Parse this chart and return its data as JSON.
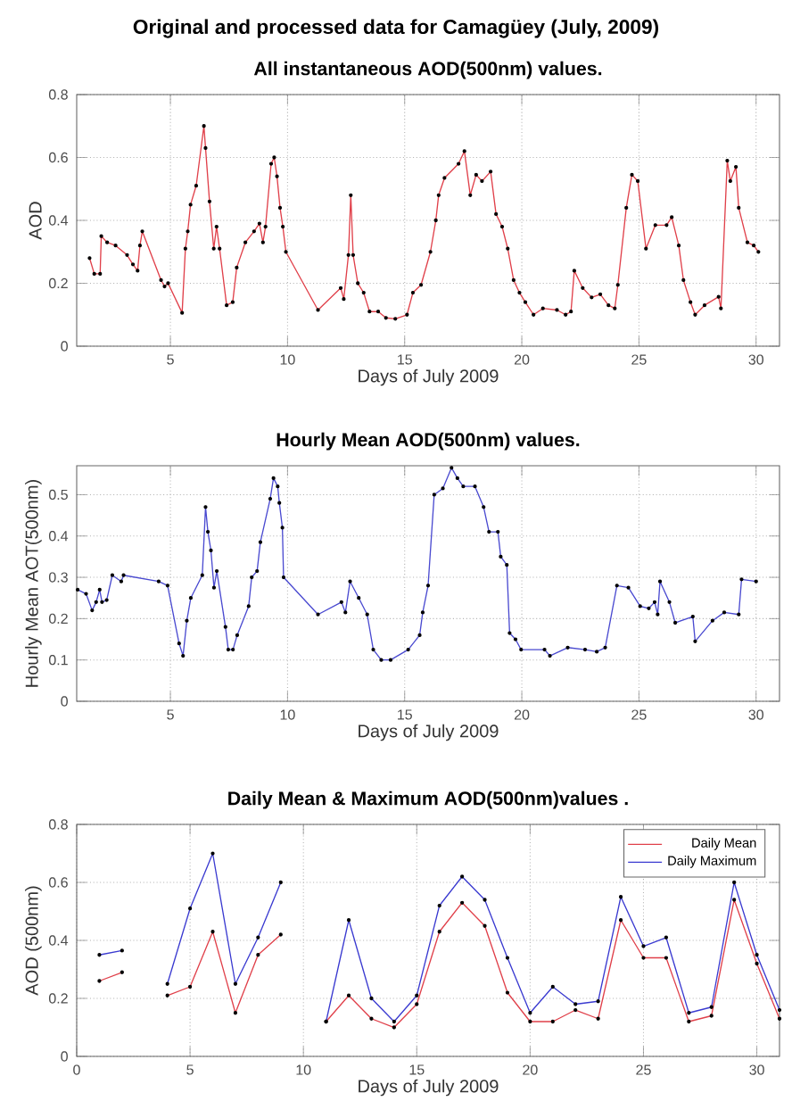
{
  "chart_data": [
    {
      "type": "line",
      "title": "Original and processed data for Camagüey (July, 2009)",
      "subtitle": "All instantaneous AOD(500nm) values.",
      "xlabel": "Days of July 2009",
      "ylabel": "AOD",
      "xlim": [
        1,
        31
      ],
      "ylim": [
        0,
        0.8
      ],
      "xticks": [
        5,
        10,
        15,
        20,
        25,
        30
      ],
      "yticks": [
        0,
        0.2,
        0.4,
        0.6,
        0.8
      ],
      "grid": true,
      "marker": "circle",
      "x": [
        1.55,
        1.75,
        2.0,
        2.05,
        2.3,
        2.66,
        3.15,
        3.4,
        3.6,
        3.7,
        3.8,
        4.6,
        4.75,
        4.9,
        5.5,
        5.64,
        5.74,
        5.86,
        6.1,
        6.43,
        6.5,
        6.67,
        6.85,
        6.97,
        7.1,
        7.4,
        7.66,
        7.83,
        8.2,
        8.57,
        8.8,
        8.95,
        9.06,
        9.3,
        9.43,
        9.55,
        9.68,
        9.8,
        9.93,
        11.3,
        12.27,
        12.4,
        12.6,
        12.7,
        12.8,
        13.0,
        13.25,
        13.5,
        13.87,
        14.2,
        14.6,
        15.1,
        15.35,
        15.7,
        16.1,
        16.33,
        16.45,
        16.7,
        17.3,
        17.55,
        17.8,
        18.05,
        18.3,
        18.67,
        18.9,
        19.16,
        19.4,
        19.65,
        19.9,
        20.15,
        20.5,
        20.9,
        21.5,
        21.87,
        22.1,
        22.24,
        22.6,
        22.98,
        23.35,
        23.7,
        23.97,
        24.1,
        24.46,
        24.7,
        24.95,
        25.3,
        25.7,
        26.18,
        26.4,
        26.7,
        26.9,
        27.2,
        27.4,
        27.8,
        28.4,
        28.5,
        28.77,
        28.9,
        29.14,
        29.26,
        29.63,
        29.9,
        30.1
      ],
      "series": [
        {
          "color": "#e0404a",
          "values": [
            0.28,
            0.23,
            0.23,
            0.35,
            0.33,
            0.32,
            0.29,
            0.26,
            0.24,
            0.32,
            0.365,
            0.21,
            0.19,
            0.2,
            0.106,
            0.31,
            0.365,
            0.45,
            0.51,
            0.7,
            0.63,
            0.46,
            0.31,
            0.38,
            0.31,
            0.13,
            0.14,
            0.25,
            0.33,
            0.365,
            0.39,
            0.33,
            0.38,
            0.58,
            0.6,
            0.54,
            0.44,
            0.38,
            0.3,
            0.115,
            0.185,
            0.15,
            0.29,
            0.48,
            0.29,
            0.2,
            0.17,
            0.11,
            0.11,
            0.09,
            0.087,
            0.1,
            0.17,
            0.195,
            0.3,
            0.4,
            0.48,
            0.535,
            0.58,
            0.62,
            0.48,
            0.545,
            0.525,
            0.555,
            0.42,
            0.38,
            0.31,
            0.21,
            0.17,
            0.14,
            0.1,
            0.12,
            0.115,
            0.1,
            0.11,
            0.24,
            0.185,
            0.155,
            0.165,
            0.13,
            0.12,
            0.195,
            0.44,
            0.545,
            0.525,
            0.31,
            0.385,
            0.385,
            0.41,
            0.32,
            0.21,
            0.14,
            0.1,
            0.13,
            0.157,
            0.12,
            0.59,
            0.525,
            0.57,
            0.44,
            0.33,
            0.32,
            0.3
          ]
        }
      ]
    },
    {
      "type": "line",
      "title": "Hourly Mean AOD(500nm) values.",
      "xlabel": "Days of July 2009",
      "ylabel": "Hourly Mean AOT(500nm)",
      "xlim": [
        1,
        31
      ],
      "ylim": [
        0,
        0.57
      ],
      "xticks": [
        5,
        10,
        15,
        20,
        25,
        30
      ],
      "yticks": [
        0,
        0.1,
        0.2,
        0.3,
        0.4,
        0.5
      ],
      "grid": true,
      "marker": "circle",
      "x": [
        1.04,
        1.4,
        1.66,
        1.83,
        1.98,
        2.08,
        2.28,
        2.52,
        2.9,
        3.0,
        4.5,
        4.88,
        5.37,
        5.54,
        5.7,
        5.87,
        6.36,
        6.5,
        6.6,
        6.73,
        6.86,
        6.98,
        7.35,
        7.47,
        7.67,
        7.85,
        8.34,
        8.47,
        8.7,
        8.84,
        9.26,
        9.4,
        9.58,
        9.65,
        9.78,
        9.83,
        11.3,
        12.3,
        12.47,
        12.67,
        13.04,
        13.4,
        13.66,
        14.0,
        14.4,
        15.15,
        15.64,
        15.77,
        16.0,
        16.26,
        16.63,
        17.0,
        17.25,
        17.5,
        18.0,
        18.37,
        18.6,
        18.98,
        19.1,
        19.36,
        19.48,
        19.73,
        19.97,
        20.97,
        21.2,
        21.96,
        22.7,
        23.2,
        23.56,
        24.06,
        24.55,
        25.05,
        25.42,
        25.67,
        25.8,
        25.9,
        26.3,
        26.55,
        27.3,
        27.4,
        28.14,
        28.64,
        29.26,
        29.38,
        30.0
      ],
      "series": [
        {
          "color": "#4a4ad0",
          "values": [
            0.27,
            0.26,
            0.22,
            0.24,
            0.27,
            0.24,
            0.245,
            0.305,
            0.29,
            0.305,
            0.29,
            0.28,
            0.14,
            0.11,
            0.195,
            0.25,
            0.305,
            0.47,
            0.41,
            0.365,
            0.275,
            0.315,
            0.18,
            0.125,
            0.125,
            0.16,
            0.23,
            0.3,
            0.315,
            0.385,
            0.49,
            0.54,
            0.52,
            0.48,
            0.42,
            0.3,
            0.21,
            0.24,
            0.215,
            0.29,
            0.25,
            0.21,
            0.125,
            0.1,
            0.1,
            0.125,
            0.16,
            0.215,
            0.28,
            0.5,
            0.515,
            0.565,
            0.54,
            0.52,
            0.52,
            0.47,
            0.41,
            0.41,
            0.35,
            0.33,
            0.165,
            0.15,
            0.125,
            0.125,
            0.11,
            0.13,
            0.125,
            0.12,
            0.13,
            0.28,
            0.275,
            0.23,
            0.225,
            0.24,
            0.21,
            0.29,
            0.24,
            0.19,
            0.205,
            0.145,
            0.195,
            0.215,
            0.21,
            0.295,
            0.29
          ]
        }
      ]
    },
    {
      "type": "line",
      "title": "Daily Mean & Maximum AOD(500nm)values .",
      "xlabel": "Days of July 2009",
      "ylabel": "AOD (500nm)",
      "xlim": [
        0,
        31
      ],
      "ylim": [
        0,
        0.8
      ],
      "xticks": [
        0,
        5,
        10,
        15,
        20,
        25,
        30
      ],
      "yticks": [
        0,
        0.2,
        0.4,
        0.6,
        0.8
      ],
      "grid": true,
      "marker": "circle",
      "legend": "top right",
      "x": [
        1,
        2,
        3,
        4,
        5,
        6,
        7,
        8,
        9,
        10,
        11,
        12,
        13,
        14,
        15,
        16,
        17,
        18,
        19,
        20,
        21,
        22,
        23,
        24,
        25,
        26,
        27,
        28,
        29,
        30,
        31
      ],
      "series": [
        {
          "name": "Daily Mean",
          "color": "#e0404a",
          "values": [
            0.26,
            0.29,
            null,
            0.21,
            0.24,
            0.43,
            0.15,
            0.35,
            0.42,
            null,
            0.12,
            0.21,
            0.13,
            0.1,
            0.18,
            0.43,
            0.53,
            0.45,
            0.22,
            0.12,
            0.12,
            0.16,
            0.13,
            0.47,
            0.34,
            0.34,
            0.12,
            0.14,
            0.54,
            0.32,
            0.13
          ]
        },
        {
          "name": "Daily Maximum",
          "color": "#3a3ad0",
          "values": [
            0.35,
            0.365,
            null,
            0.25,
            0.51,
            0.7,
            0.25,
            0.41,
            0.6,
            null,
            0.12,
            0.47,
            0.2,
            0.12,
            0.21,
            0.52,
            0.62,
            0.54,
            0.34,
            0.15,
            0.24,
            0.18,
            0.19,
            0.55,
            0.38,
            0.41,
            0.15,
            0.17,
            0.6,
            0.35,
            0.16
          ]
        }
      ]
    }
  ]
}
